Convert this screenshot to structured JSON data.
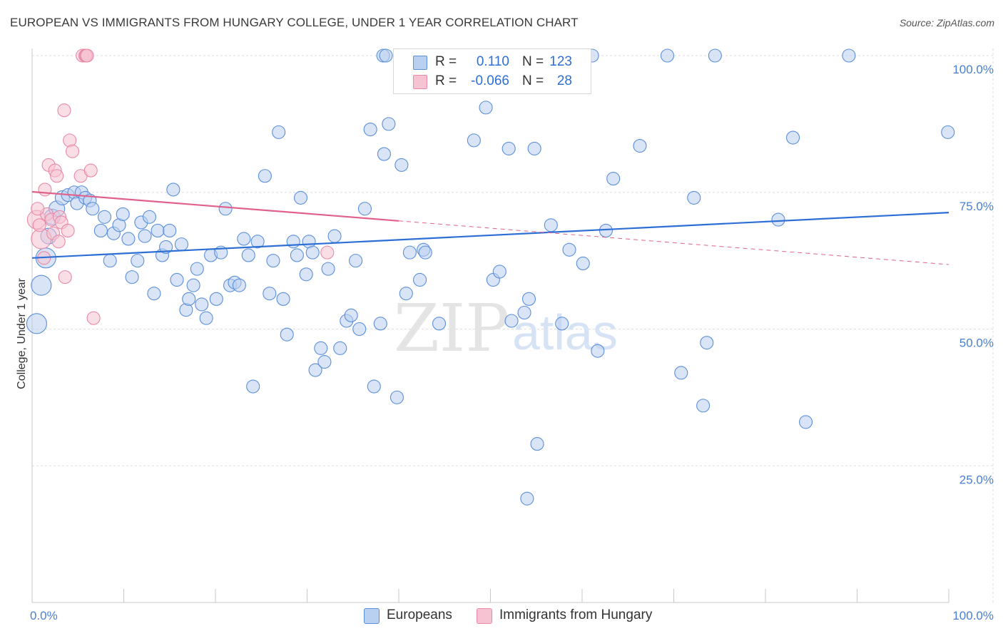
{
  "title": "EUROPEAN VS IMMIGRANTS FROM HUNGARY COLLEGE, UNDER 1 YEAR CORRELATION CHART",
  "source": "Source: ZipAtlas.com",
  "colors": {
    "european": "#5b8fd9",
    "european_fill": "#b9d0f1",
    "hungary": "#e889a6",
    "hungary_fill": "#f6c3d2",
    "blue_line": "#2e6fd6",
    "pink_line": "#e0628a",
    "tick_text": "#4a7fd0"
  },
  "legend": {
    "rows": [
      {
        "label_r": "R =",
        "r": "0.110",
        "label_n": "N =",
        "n": "123"
      },
      {
        "label_r": "R =",
        "r": "-0.066",
        "label_n": "N =",
        "n": "28"
      }
    ]
  },
  "bottom_legend": {
    "european": "Europeans",
    "hungary": "Immigrants from Hungary"
  },
  "chart_data": {
    "type": "scatter",
    "title": "EUROPEAN VS IMMIGRANTS FROM HUNGARY COLLEGE, UNDER 1 YEAR CORRELATION CHART",
    "xlabel": "",
    "ylabel": "College, Under 1 year",
    "xlim": [
      0,
      100
    ],
    "ylim": [
      0,
      105
    ],
    "x_tick_labels": [
      "0.0%",
      "100.0%"
    ],
    "y_ticks": [
      25,
      50,
      75,
      100
    ],
    "y_tick_labels": [
      "25.0%",
      "50.0%",
      "75.0%",
      "100.0%"
    ],
    "grid": true,
    "watermark": {
      "zip": "ZIP",
      "atlas": "atlas"
    },
    "series": [
      {
        "name": "Europeans",
        "r": 0.11,
        "n": 123,
        "trend": {
          "x0": 0,
          "y0": 63.0,
          "x1": 100,
          "y1": 71.3,
          "dashed_from": null
        },
        "points": [
          [
            0.5,
            51,
            14
          ],
          [
            1.0,
            58,
            14
          ],
          [
            1.5,
            63,
            14
          ],
          [
            1.8,
            67,
            11
          ],
          [
            2.2,
            70.5,
            11
          ],
          [
            2.7,
            72,
            11
          ],
          [
            3.3,
            74,
            10
          ],
          [
            3.9,
            74.5,
            9
          ],
          [
            4.6,
            75,
            9
          ],
          [
            4.9,
            73,
            9
          ],
          [
            5.4,
            75,
            9
          ],
          [
            5.8,
            74,
            9
          ],
          [
            6.3,
            73.5,
            9
          ],
          [
            6.6,
            72,
            9
          ],
          [
            7.5,
            68,
            9
          ],
          [
            7.9,
            70.5,
            9
          ],
          [
            8.5,
            62.5,
            9
          ],
          [
            8.9,
            67.5,
            9
          ],
          [
            9.5,
            69,
            9
          ],
          [
            9.9,
            71,
            9
          ],
          [
            10.5,
            66.5,
            9
          ],
          [
            10.9,
            59.5,
            9
          ],
          [
            11.5,
            62.5,
            9
          ],
          [
            11.9,
            69.5,
            9
          ],
          [
            12.3,
            67,
            9
          ],
          [
            12.8,
            70.5,
            9
          ],
          [
            13.3,
            56.5,
            9
          ],
          [
            13.7,
            68,
            9
          ],
          [
            14.2,
            63.5,
            9
          ],
          [
            14.6,
            65,
            9
          ],
          [
            15.0,
            68,
            9
          ],
          [
            15.4,
            75.5,
            9
          ],
          [
            15.8,
            59,
            9
          ],
          [
            16.3,
            65.5,
            9
          ],
          [
            16.8,
            53.5,
            9
          ],
          [
            17.1,
            55.5,
            9
          ],
          [
            17.6,
            58,
            9
          ],
          [
            18.0,
            61,
            9
          ],
          [
            18.5,
            54.5,
            9
          ],
          [
            19.0,
            52,
            9
          ],
          [
            19.5,
            63.5,
            9
          ],
          [
            20.1,
            55.5,
            9
          ],
          [
            20.6,
            64,
            9
          ],
          [
            21.1,
            72,
            9
          ],
          [
            21.6,
            58,
            9
          ],
          [
            22.1,
            58.5,
            9
          ],
          [
            22.6,
            58,
            9
          ],
          [
            23.1,
            66.5,
            9
          ],
          [
            23.6,
            63.5,
            9
          ],
          [
            24.1,
            39.5,
            9
          ],
          [
            24.6,
            66,
            9
          ],
          [
            25.4,
            78,
            9
          ],
          [
            25.9,
            56.5,
            9
          ],
          [
            26.3,
            62.5,
            9
          ],
          [
            26.9,
            86,
            9
          ],
          [
            27.4,
            55.5,
            9
          ],
          [
            27.8,
            49,
            9
          ],
          [
            28.5,
            66,
            9
          ],
          [
            28.9,
            63.5,
            9
          ],
          [
            29.3,
            74,
            9
          ],
          [
            29.9,
            60,
            9
          ],
          [
            30.2,
            66,
            9
          ],
          [
            30.6,
            64,
            9
          ],
          [
            30.9,
            42.5,
            9
          ],
          [
            31.5,
            46.5,
            9
          ],
          [
            31.9,
            44,
            9
          ],
          [
            32.3,
            61,
            9
          ],
          [
            33.0,
            67,
            9
          ],
          [
            33.6,
            46.5,
            9
          ],
          [
            34.3,
            51.5,
            9
          ],
          [
            34.8,
            52.5,
            9
          ],
          [
            35.3,
            62.5,
            9
          ],
          [
            35.7,
            50,
            9
          ],
          [
            36.3,
            72,
            9
          ],
          [
            36.9,
            86.5,
            9
          ],
          [
            37.3,
            39.5,
            9
          ],
          [
            38.4,
            82,
            9
          ],
          [
            38.9,
            87.5,
            9
          ],
          [
            38.0,
            51,
            9
          ],
          [
            39.8,
            37.5,
            9
          ],
          [
            40.3,
            80,
            9
          ],
          [
            40.8,
            56.5,
            9
          ],
          [
            41.2,
            64,
            9
          ],
          [
            42.3,
            59,
            9
          ],
          [
            42.7,
            64.5,
            9
          ],
          [
            42.9,
            64,
            9
          ],
          [
            44.4,
            51,
            9
          ],
          [
            48.2,
            84.5,
            9
          ],
          [
            49.5,
            90.5,
            9
          ],
          [
            50.3,
            59,
            9
          ],
          [
            51.0,
            60.5,
            9
          ],
          [
            52.0,
            83,
            9
          ],
          [
            52.3,
            51.5,
            9
          ],
          [
            53.7,
            53,
            9
          ],
          [
            54.2,
            55.5,
            9
          ],
          [
            54.8,
            83,
            9
          ],
          [
            55.1,
            29,
            9
          ],
          [
            56.6,
            69,
            9
          ],
          [
            57.8,
            51,
            9
          ],
          [
            58.6,
            64.5,
            9
          ],
          [
            60.1,
            62,
            9
          ],
          [
            61.7,
            46,
            9
          ],
          [
            62.6,
            68,
            9
          ],
          [
            63.4,
            77.5,
            9
          ],
          [
            66.3,
            83.5,
            9
          ],
          [
            70.8,
            42,
            9
          ],
          [
            72.2,
            74,
            9
          ],
          [
            73.6,
            47.5,
            9
          ],
          [
            73.2,
            36,
            9
          ],
          [
            81.4,
            70,
            9
          ],
          [
            83.0,
            85,
            9
          ],
          [
            84.4,
            33,
            9
          ],
          [
            89.1,
            100,
            9
          ],
          [
            99.9,
            86,
            9
          ],
          [
            48.5,
            100,
            9
          ],
          [
            49.2,
            100,
            9
          ],
          [
            47.0,
            100,
            9
          ],
          [
            61.1,
            100,
            9
          ],
          [
            69.3,
            100,
            9
          ],
          [
            74.5,
            100,
            9
          ],
          [
            54.0,
            19,
            9
          ],
          [
            38.3,
            100,
            9
          ],
          [
            38.6,
            100,
            9
          ]
        ]
      },
      {
        "name": "Immigrants from Hungary",
        "r": -0.066,
        "n": 28,
        "trend": {
          "x0": 0,
          "y0": 75.1,
          "x1": 100,
          "y1": 61.8,
          "dashed_from": 40
        },
        "points": [
          [
            0.5,
            70,
            13
          ],
          [
            1.0,
            66.5,
            14
          ],
          [
            1.4,
            75.5,
            9
          ],
          [
            1.6,
            71,
            9
          ],
          [
            1.3,
            63,
            9
          ],
          [
            1.8,
            80,
            9
          ],
          [
            2.1,
            70,
            9
          ],
          [
            2.3,
            67.5,
            9
          ],
          [
            2.5,
            79,
            9
          ],
          [
            2.7,
            78,
            9
          ],
          [
            2.9,
            66,
            9
          ],
          [
            3.0,
            70.5,
            9
          ],
          [
            3.2,
            69.5,
            9
          ],
          [
            3.5,
            90,
            9
          ],
          [
            3.6,
            59.5,
            9
          ],
          [
            3.9,
            68,
            9
          ],
          [
            4.1,
            84.5,
            9
          ],
          [
            4.4,
            82.5,
            9
          ],
          [
            5.3,
            78,
            9
          ],
          [
            5.5,
            100,
            9
          ],
          [
            5.8,
            100,
            9
          ],
          [
            5.9,
            100,
            9
          ],
          [
            6.0,
            100,
            9
          ],
          [
            6.4,
            79,
            9
          ],
          [
            6.7,
            52,
            9
          ],
          [
            32.2,
            64,
            9
          ],
          [
            0.6,
            72,
            9
          ],
          [
            0.8,
            69,
            9
          ]
        ]
      }
    ]
  }
}
